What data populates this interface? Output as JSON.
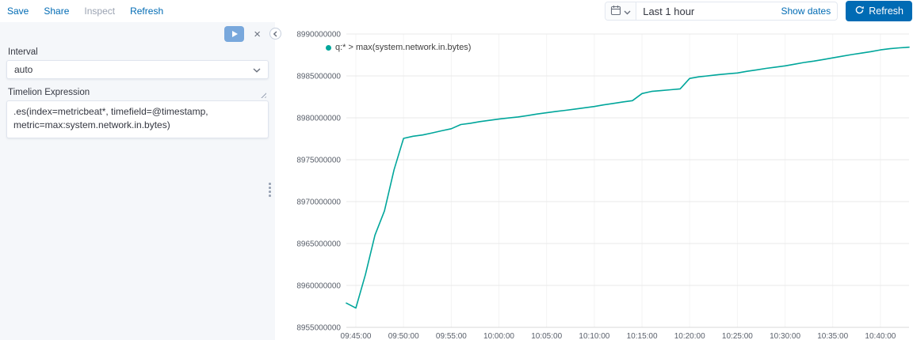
{
  "topbar": {
    "links": [
      {
        "label": "Save"
      },
      {
        "label": "Share"
      },
      {
        "label": "Inspect",
        "disabled": true
      },
      {
        "label": "Refresh"
      }
    ],
    "datepicker": {
      "range_label": "Last 1 hour",
      "show_dates_label": "Show dates"
    },
    "refresh_button_label": "Refresh"
  },
  "sidebar": {
    "interval_label": "Interval",
    "interval_value": "auto",
    "expression_label": "Timelion Expression",
    "expression_value": ".es(index=metricbeat*, timefield=@timestamp, metric=max:system.network.in.bytes)"
  },
  "colors": {
    "primary": "#006BB4",
    "series_teal": "#00A69B"
  },
  "chart_data": {
    "type": "line",
    "title": "",
    "legend_position": "top-left",
    "grid": "horizontal-light",
    "ylim": [
      8955000000,
      8990000000
    ],
    "y_ticks": [
      8990000000,
      8985000000,
      8980000000,
      8975000000,
      8970000000,
      8965000000,
      8960000000,
      8955000000
    ],
    "x_ticks": [
      "09:45:00",
      "09:50:00",
      "09:55:00",
      "10:00:00",
      "10:05:00",
      "10:10:00",
      "10:15:00",
      "10:20:00",
      "10:25:00",
      "10:30:00",
      "10:35:00",
      "10:40:00"
    ],
    "series": [
      {
        "name": "q:* > max(system.network.in.bytes)",
        "color": "#00A69B",
        "x": [
          "09:44:00",
          "09:45:00",
          "09:46:00",
          "09:47:00",
          "09:48:00",
          "09:49:00",
          "09:50:00",
          "09:51:00",
          "09:52:00",
          "09:53:00",
          "09:54:00",
          "09:55:00",
          "09:56:00",
          "09:57:00",
          "09:58:00",
          "09:59:00",
          "10:00:00",
          "10:01:00",
          "10:02:00",
          "10:03:00",
          "10:04:00",
          "10:05:00",
          "10:06:00",
          "10:07:00",
          "10:08:00",
          "10:09:00",
          "10:10:00",
          "10:11:00",
          "10:12:00",
          "10:13:00",
          "10:14:00",
          "10:15:00",
          "10:16:00",
          "10:17:00",
          "10:18:00",
          "10:19:00",
          "10:20:00",
          "10:21:00",
          "10:22:00",
          "10:23:00",
          "10:24:00",
          "10:25:00",
          "10:26:00",
          "10:27:00",
          "10:28:00",
          "10:29:00",
          "10:30:00",
          "10:31:00",
          "10:32:00",
          "10:33:00",
          "10:34:00",
          "10:35:00",
          "10:36:00",
          "10:37:00",
          "10:38:00",
          "10:39:00",
          "10:40:00",
          "10:41:00",
          "10:42:00",
          "10:43:00"
        ],
        "values": [
          8957900000,
          8957300000,
          8961300000,
          8966000000,
          8968900000,
          8973800000,
          8977550000,
          8977800000,
          8977950000,
          8978200000,
          8978450000,
          8978700000,
          8979200000,
          8979350000,
          8979550000,
          8979700000,
          8979850000,
          8979980000,
          8980100000,
          8980260000,
          8980450000,
          8980600000,
          8980760000,
          8980900000,
          8981050000,
          8981200000,
          8981350000,
          8981550000,
          8981720000,
          8981900000,
          8982050000,
          8982900000,
          8983150000,
          8983250000,
          8983350000,
          8983450000,
          8984700000,
          8984900000,
          8985020000,
          8985150000,
          8985250000,
          8985350000,
          8985550000,
          8985720000,
          8985900000,
          8986050000,
          8986200000,
          8986400000,
          8986600000,
          8986760000,
          8986950000,
          8987150000,
          8987350000,
          8987550000,
          8987720000,
          8987900000,
          8988100000,
          8988250000,
          8988350000,
          8988420000
        ]
      }
    ]
  }
}
